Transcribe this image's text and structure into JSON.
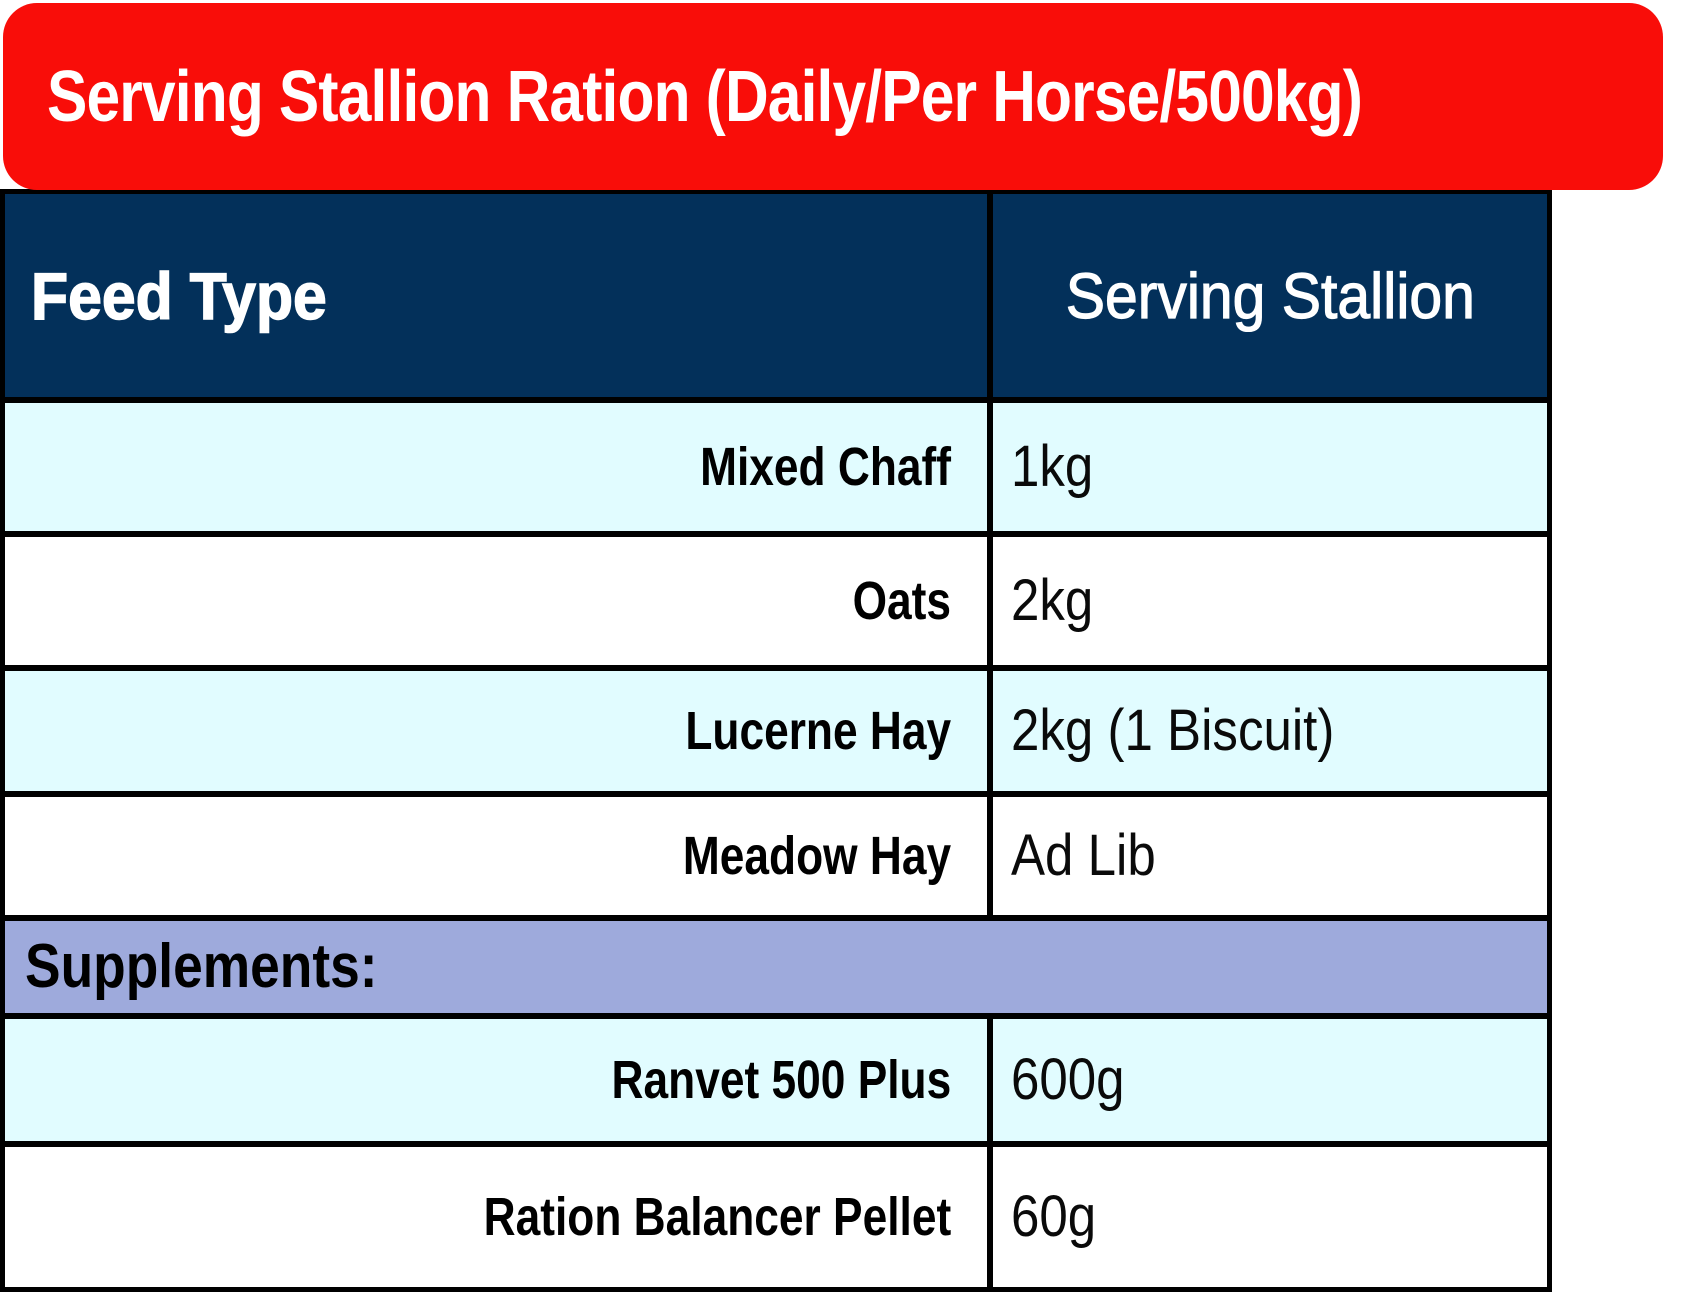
{
  "banner": {
    "title": "Serving Stallion Ration (Daily/Per Horse/500kg)"
  },
  "table": {
    "headers": {
      "feed_type": "Feed Type",
      "serving_stallion": "Serving Stallion"
    },
    "rows": [
      {
        "label": "Mixed Chaff",
        "value": "1kg"
      },
      {
        "label": "Oats",
        "value": "2kg"
      },
      {
        "label": "Lucerne Hay",
        "value": "2kg (1 Biscuit)"
      },
      {
        "label": "Meadow Hay",
        "value": "Ad Lib"
      },
      {
        "label": "Ranvet 500 Plus",
        "value": "600g"
      },
      {
        "label": "Ration Balancer Pellet",
        "value": "60g"
      }
    ],
    "section_label": "Supplements:"
  },
  "colors": {
    "banner_red": "#F90D09",
    "header_navy": "#03305A",
    "row_cyan": "#E1FCFF",
    "row_white": "#FFFFFF",
    "section_lavender": "#9EAADC",
    "border_black": "#000000",
    "text_white": "#FFFFFF",
    "text_black": "#000000"
  }
}
